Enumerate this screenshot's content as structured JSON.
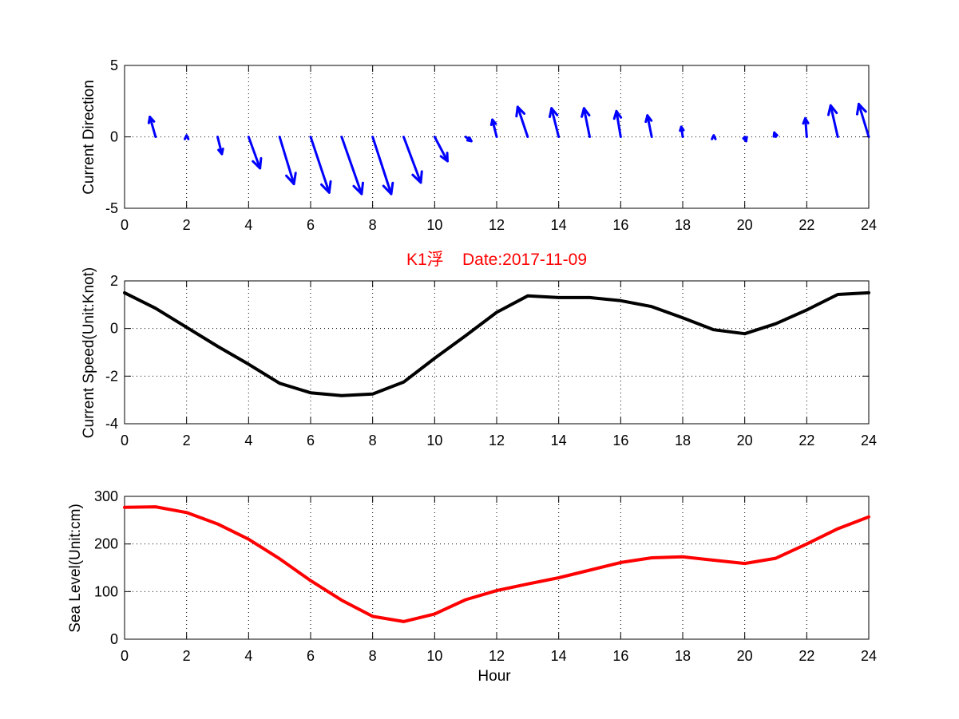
{
  "title": "K1浮    Date:2017-11-09",
  "chart_data": [
    {
      "type": "quiver",
      "name": "current-direction",
      "ylabel": "Current Direction",
      "xlabel": "",
      "xlim": [
        0,
        24
      ],
      "ylim": [
        -5,
        5
      ],
      "xticks": [
        0,
        2,
        4,
        6,
        8,
        10,
        12,
        14,
        16,
        18,
        20,
        22,
        24
      ],
      "yticks": [
        -5,
        0,
        5
      ],
      "grid": true,
      "color": "#0000ff",
      "arrows": [
        {
          "x": 0,
          "u": 0.0,
          "v": 0.0
        },
        {
          "x": 1,
          "u": -0.4,
          "v": 1.4
        },
        {
          "x": 2,
          "u": 0.0,
          "v": 0.1
        },
        {
          "x": 3,
          "u": 0.3,
          "v": -1.2
        },
        {
          "x": 4,
          "u": 0.8,
          "v": -2.2
        },
        {
          "x": 5,
          "u": 1.0,
          "v": -3.3
        },
        {
          "x": 6,
          "u": 1.3,
          "v": -3.9
        },
        {
          "x": 7,
          "u": 1.4,
          "v": -4.0
        },
        {
          "x": 8,
          "u": 1.3,
          "v": -4.0
        },
        {
          "x": 9,
          "u": 1.2,
          "v": -3.2
        },
        {
          "x": 10,
          "u": 0.9,
          "v": -1.7
        },
        {
          "x": 11,
          "u": 0.4,
          "v": -0.3
        },
        {
          "x": 12,
          "u": -0.3,
          "v": 1.2
        },
        {
          "x": 13,
          "u": -0.7,
          "v": 2.1
        },
        {
          "x": 14,
          "u": -0.5,
          "v": 2.0
        },
        {
          "x": 15,
          "u": -0.4,
          "v": 2.0
        },
        {
          "x": 16,
          "u": -0.3,
          "v": 1.8
        },
        {
          "x": 17,
          "u": -0.3,
          "v": 1.5
        },
        {
          "x": 18,
          "u": -0.1,
          "v": 0.7
        },
        {
          "x": 19,
          "u": 0.0,
          "v": 0.1
        },
        {
          "x": 20,
          "u": 0.1,
          "v": -0.3
        },
        {
          "x": 21,
          "u": -0.1,
          "v": 0.3
        },
        {
          "x": 22,
          "u": -0.1,
          "v": 1.3
        },
        {
          "x": 23,
          "u": -0.5,
          "v": 2.2
        },
        {
          "x": 24,
          "u": -0.7,
          "v": 2.3
        }
      ]
    },
    {
      "type": "line",
      "name": "current-speed",
      "ylabel": "Current Speed(Unit:Knot)",
      "xlabel": "",
      "xlim": [
        0,
        24
      ],
      "ylim": [
        -4,
        2
      ],
      "xticks": [
        0,
        2,
        4,
        6,
        8,
        10,
        12,
        14,
        16,
        18,
        20,
        22,
        24
      ],
      "yticks": [
        -4,
        -2,
        0,
        2
      ],
      "grid": true,
      "color": "#000000",
      "x": [
        0,
        1,
        2,
        3,
        4,
        5,
        6,
        7,
        8,
        9,
        10,
        11,
        12,
        13,
        14,
        15,
        16,
        17,
        18,
        19,
        20,
        21,
        22,
        23,
        24
      ],
      "y": [
        1.5,
        0.85,
        0.05,
        -0.75,
        -1.5,
        -2.3,
        -2.7,
        -2.82,
        -2.75,
        -2.25,
        -1.25,
        -0.3,
        0.68,
        1.37,
        1.3,
        1.3,
        1.17,
        0.92,
        0.45,
        -0.05,
        -0.22,
        0.2,
        0.78,
        1.43,
        1.5
      ]
    },
    {
      "type": "line",
      "name": "sea-level",
      "ylabel": "Sea Level(Unit:cm)",
      "xlabel": "Hour",
      "xlim": [
        0,
        24
      ],
      "ylim": [
        0,
        300
      ],
      "xticks": [
        0,
        2,
        4,
        6,
        8,
        10,
        12,
        14,
        16,
        18,
        20,
        22,
        24
      ],
      "yticks": [
        0,
        100,
        200,
        300
      ],
      "grid": true,
      "color": "#ff0000",
      "x": [
        0,
        1,
        2,
        3,
        4,
        5,
        6,
        7,
        8,
        9,
        10,
        11,
        12,
        13,
        14,
        15,
        16,
        17,
        18,
        19,
        20,
        21,
        22,
        23,
        24
      ],
      "y": [
        277,
        278,
        266,
        242,
        210,
        169,
        123,
        82,
        48,
        37,
        53,
        83,
        102,
        116,
        129,
        145,
        161,
        171,
        173,
        166,
        159,
        170,
        200,
        232,
        257
      ]
    }
  ]
}
